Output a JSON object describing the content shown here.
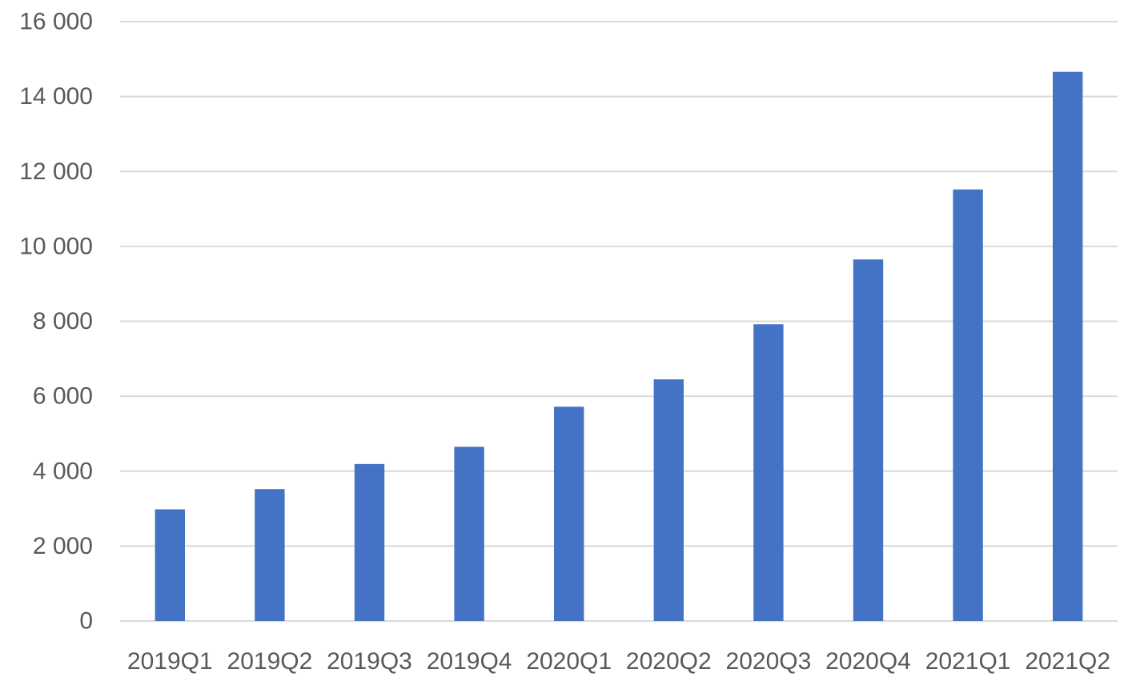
{
  "chart_data": {
    "type": "bar",
    "categories": [
      "2019Q1",
      "2019Q2",
      "2019Q3",
      "2019Q4",
      "2020Q1",
      "2020Q2",
      "2020Q3",
      "2020Q4",
      "2021Q1",
      "2021Q2"
    ],
    "values": [
      2980,
      3520,
      4190,
      4650,
      5720,
      6450,
      7920,
      9650,
      11520,
      14660
    ],
    "title": "",
    "xlabel": "",
    "ylabel": "",
    "ylim": [
      0,
      16000
    ],
    "yticks": [
      0,
      2000,
      4000,
      6000,
      8000,
      10000,
      12000,
      14000,
      16000
    ],
    "ytick_labels": [
      "0",
      "2 000",
      "4 000",
      "6 000",
      "8 000",
      "10 000",
      "12 000",
      "14 000",
      "16 000"
    ],
    "grid": true,
    "legend": "none",
    "bar_color": "#4472c4"
  }
}
